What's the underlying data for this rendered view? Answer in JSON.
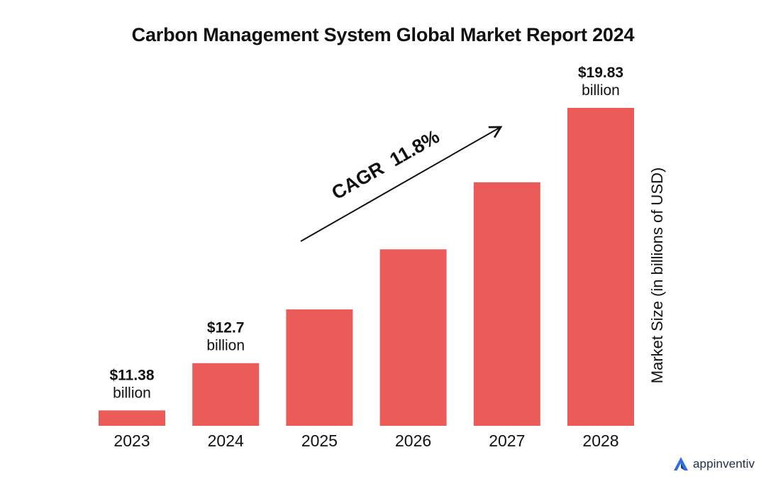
{
  "chart_data": {
    "type": "bar",
    "title": "Carbon Management System Global Market Report 2024",
    "categories": [
      "2023",
      "2024",
      "2025",
      "2026",
      "2027",
      "2028"
    ],
    "values": [
      11.38,
      12.7,
      14.2,
      15.88,
      17.75,
      19.83
    ],
    "ylabel": "Market Size (in billions of USD)",
    "xlabel": "",
    "ylim": [
      10,
      20
    ],
    "grid": false,
    "bar_color": "#EB5B57",
    "data_labels": [
      {
        "category": "2023",
        "line1": "$11.38",
        "line2": "billion"
      },
      {
        "category": "2024",
        "line1": "$12.7",
        "line2": "billion"
      },
      {
        "category": "2028",
        "line1": "$19.83",
        "line2": "billion"
      }
    ],
    "annotation": {
      "text": "CAGR  11.8%",
      "type": "arrow",
      "from_category": "2025",
      "to_category": "2027"
    }
  },
  "brand": {
    "name": "appinventiv",
    "logo_icon": "triangle-logo-icon"
  }
}
